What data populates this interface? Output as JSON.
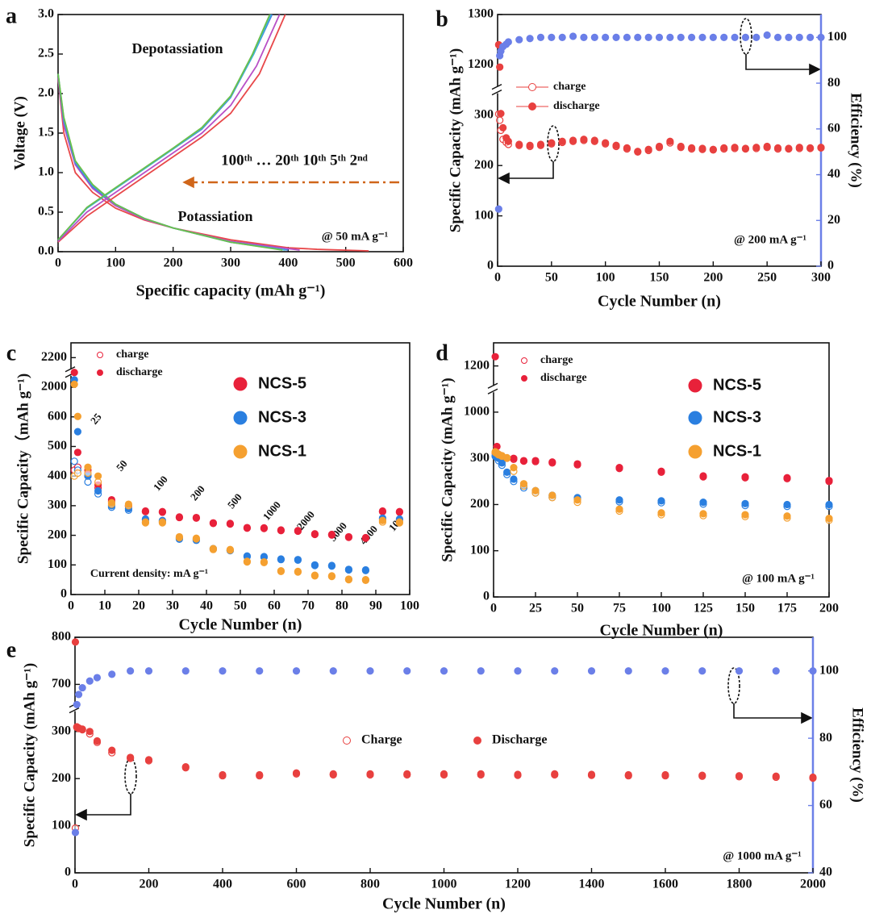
{
  "chart_data": [
    {
      "type": "line",
      "panel_label": "a",
      "xlabel": "Specific capacity (mAh g⁻¹)",
      "ylabel": "Voltage (V)",
      "xlim": [
        0,
        600
      ],
      "ylim": [
        0,
        3
      ],
      "xticks": [
        0,
        100,
        200,
        300,
        400,
        500,
        600
      ],
      "yticks": [
        {
          "value": 0,
          "label": "0.0"
        },
        0.5,
        {
          "value": 1,
          "label": "1.0"
        },
        1.5,
        {
          "value": 2,
          "label": "2.0"
        },
        2.5,
        {
          "value": 3,
          "label": "3.0"
        }
      ],
      "annotations": [
        "Depotassiation",
        "Potassiation",
        "100ᵗʰ … 20ᵗʰ 10ᵗʰ 5ᵗʰ 2ⁿᵈ",
        "@ 50 mA g⁻¹"
      ],
      "series": [
        {
          "color": "#e8484a",
          "x": [
            0,
            10,
            30,
            60,
            100,
            150,
            200,
            300,
            400,
            450,
            540
          ],
          "values": [
            2.2,
            1.5,
            1.0,
            0.75,
            0.55,
            0.4,
            0.3,
            0.15,
            0.05,
            0.03,
            0.01
          ]
        },
        {
          "color": "#b84fc6",
          "x": [
            0,
            10,
            30,
            60,
            100,
            150,
            200,
            300,
            420
          ],
          "values": [
            2.2,
            1.6,
            1.1,
            0.8,
            0.58,
            0.41,
            0.3,
            0.13,
            0.02
          ]
        },
        {
          "color": "#4a7fe0",
          "x": [
            0,
            10,
            30,
            60,
            100,
            150,
            200,
            300,
            400
          ],
          "values": [
            2.25,
            1.65,
            1.12,
            0.82,
            0.6,
            0.42,
            0.3,
            0.12,
            0.02
          ]
        },
        {
          "color": "#3cb4d8",
          "x": [
            0,
            10,
            30,
            60,
            100,
            150,
            200,
            300,
            395
          ],
          "values": [
            2.25,
            1.68,
            1.14,
            0.84,
            0.6,
            0.42,
            0.3,
            0.12,
            0.02
          ]
        },
        {
          "color": "#6abf4b",
          "x": [
            0,
            10,
            30,
            60,
            100,
            150,
            200,
            300,
            390
          ],
          "values": [
            2.25,
            1.7,
            1.15,
            0.85,
            0.6,
            0.42,
            0.3,
            0.12,
            0.02
          ]
        },
        {
          "color": "#e8484a",
          "x": [
            0,
            50,
            100,
            150,
            200,
            250,
            300,
            350,
            395
          ],
          "values": [
            0.12,
            0.45,
            0.7,
            0.95,
            1.2,
            1.45,
            1.75,
            2.25,
            3.0
          ]
        },
        {
          "color": "#b84fc6",
          "x": [
            0,
            50,
            100,
            150,
            200,
            250,
            300,
            345,
            385
          ],
          "values": [
            0.13,
            0.5,
            0.75,
            1.0,
            1.25,
            1.5,
            1.85,
            2.35,
            3.0
          ]
        },
        {
          "color": "#4a7fe0",
          "x": [
            0,
            50,
            100,
            150,
            200,
            250,
            300,
            340,
            372
          ],
          "values": [
            0.15,
            0.55,
            0.8,
            1.05,
            1.3,
            1.55,
            1.95,
            2.5,
            3.0
          ]
        },
        {
          "color": "#3cb4d8",
          "x": [
            0,
            50,
            100,
            150,
            200,
            250,
            300,
            340,
            370
          ],
          "values": [
            0.15,
            0.55,
            0.8,
            1.05,
            1.3,
            1.56,
            1.96,
            2.5,
            3.0
          ]
        },
        {
          "color": "#6abf4b",
          "x": [
            0,
            50,
            100,
            150,
            200,
            250,
            300,
            338,
            368
          ],
          "values": [
            0.15,
            0.56,
            0.81,
            1.06,
            1.31,
            1.57,
            1.97,
            2.5,
            3.0
          ]
        }
      ]
    },
    {
      "type": "scatter",
      "panel_label": "b",
      "xlabel": "Cycle Number (n)",
      "ylabel": "Specific Capacity (mAh g⁻¹)",
      "y2label": "Efficiency (%)",
      "xlim": [
        0,
        300
      ],
      "ylim": [
        0,
        1300
      ],
      "y2lim": [
        0,
        110
      ],
      "ybreak": true,
      "y2color": "#6b7fe8",
      "xticks": [
        0,
        50,
        100,
        150,
        200,
        250,
        300
      ],
      "yticks": [
        0,
        100,
        200,
        300,
        1200,
        1300
      ],
      "y2ticks": [
        0,
        20,
        40,
        60,
        80,
        100
      ],
      "annotations": [
        "@ 200 mA g⁻¹"
      ],
      "x": [
        1,
        2,
        3,
        5,
        8,
        10,
        20,
        30,
        40,
        50,
        60,
        70,
        80,
        90,
        100,
        110,
        120,
        130,
        140,
        150,
        160,
        170,
        180,
        190,
        200,
        210,
        220,
        230,
        240,
        250,
        260,
        270,
        280,
        290,
        300
      ],
      "series": [
        {
          "name": "charge",
          "color": "#e8403f",
          "marker": "open",
          "values": [
            320,
            290,
            270,
            252,
            246,
            242,
            240,
            238,
            240,
            243,
            246,
            248,
            250,
            248,
            243,
            238,
            233,
            227,
            230,
            236,
            245,
            236,
            233,
            232,
            231,
            233,
            234,
            233,
            234,
            236,
            233,
            233,
            234,
            234,
            235
          ]
        },
        {
          "name": "discharge",
          "color": "#e8403f",
          "marker": "filled",
          "values": [
            1240,
            1160,
            330,
            275,
            255,
            248,
            242,
            240,
            242,
            245,
            248,
            250,
            252,
            250,
            245,
            240,
            235,
            228,
            232,
            238,
            248,
            238,
            235,
            234,
            232,
            235,
            236,
            234,
            236,
            238,
            235,
            234,
            236,
            235,
            236
          ]
        },
        {
          "color": "#6b7fe8",
          "marker": "filled",
          "axis": "y2",
          "values": [
            25,
            92,
            94,
            96,
            97,
            98,
            99,
            99.5,
            100,
            100,
            100,
            100.5,
            100,
            100,
            100,
            100,
            100,
            100,
            100,
            100,
            100,
            100,
            100,
            100,
            100,
            100,
            100,
            100,
            100,
            101,
            100,
            100,
            100,
            100,
            100
          ]
        }
      ]
    },
    {
      "type": "scatter",
      "panel_label": "c",
      "xlabel": "Cycle Number (n)",
      "ylabel": "Specific Capacity（mAh g⁻¹)",
      "xlim": [
        0,
        100
      ],
      "ylim": [
        0,
        2300
      ],
      "ybreak": true,
      "xticks": [
        0,
        10,
        20,
        30,
        40,
        50,
        60,
        70,
        80,
        90,
        100
      ],
      "yticks": [
        0,
        100,
        200,
        300,
        400,
        500,
        600,
        2000,
        2200
      ],
      "annotations": [
        "Current density:  mA g⁻¹",
        "25",
        "50",
        "100",
        "200",
        "500",
        "1000",
        "2000",
        "3000",
        "4000",
        "100"
      ],
      "marker_legend": [
        "charge",
        "discharge"
      ],
      "x": [
        1,
        2,
        5,
        8,
        12,
        17,
        22,
        27,
        32,
        37,
        42,
        47,
        52,
        57,
        62,
        67,
        72,
        77,
        82,
        87,
        92,
        97
      ],
      "series": [
        {
          "name": "NCS-5",
          "color": "#e8213a",
          "values": [
            2100,
            480,
            420,
            370,
            320,
            300,
            282,
            280,
            262,
            260,
            242,
            240,
            226,
            225,
            218,
            216,
            205,
            203,
            195,
            192,
            282,
            280
          ],
          "charge": [
            420,
            430,
            400,
            360,
            315,
            298,
            280,
            278,
            260,
            258,
            240,
            238,
            224,
            223,
            216,
            214,
            203,
            201,
            193,
            190,
            280,
            278
          ]
        },
        {
          "name": "NCS-3",
          "color": "#2a7fe0",
          "values": [
            2050,
            550,
            400,
            350,
            300,
            290,
            255,
            250,
            190,
            185,
            155,
            150,
            130,
            128,
            120,
            118,
            100,
            98,
            85,
            83,
            258,
            255
          ],
          "charge": [
            450,
            420,
            380,
            340,
            295,
            285,
            252,
            248,
            187,
            183,
            153,
            148,
            128,
            126,
            118,
            116,
            98,
            96,
            83,
            81,
            255,
            252
          ]
        },
        {
          "name": "NCS-1",
          "color": "#f5a030",
          "values": [
            2020,
            620,
            430,
            400,
            310,
            305,
            245,
            245,
            195,
            190,
            155,
            152,
            112,
            110,
            80,
            78,
            65,
            63,
            52,
            50,
            250,
            245
          ],
          "charge": [
            400,
            410,
            410,
            380,
            305,
            300,
            242,
            242,
            192,
            188,
            152,
            150,
            110,
            108,
            78,
            76,
            63,
            61,
            50,
            48,
            245,
            242
          ]
        }
      ]
    },
    {
      "type": "scatter",
      "panel_label": "d",
      "xlabel": "Cycle Number (n)",
      "ylabel": "Specific Capacity (mAh g⁻¹)",
      "xlim": [
        0,
        200
      ],
      "ylim": [
        0,
        1300
      ],
      "ybreak": true,
      "xticks": [
        0,
        25,
        50,
        75,
        100,
        125,
        150,
        175,
        200
      ],
      "yticks": [
        0,
        100,
        200,
        300,
        1000,
        1200
      ],
      "annotations": [
        "@ 100 mA g⁻¹"
      ],
      "marker_legend": [
        "charge",
        "discharge"
      ],
      "x": [
        1,
        2,
        3,
        5,
        8,
        12,
        18,
        25,
        35,
        50,
        75,
        100,
        125,
        150,
        175,
        200
      ],
      "series": [
        {
          "name": "NCS-5",
          "color": "#e8213a",
          "values": [
            1240,
            480,
            360,
            320,
            305,
            300,
            295,
            295,
            292,
            288,
            280,
            272,
            262,
            260,
            258,
            252
          ],
          "charge": [
            380,
            340,
            330,
            315,
            302,
            298,
            294,
            293,
            290,
            286,
            278,
            270,
            260,
            258,
            256,
            250
          ]
        },
        {
          "name": "NCS-3",
          "color": "#2a7fe0",
          "values": [
            340,
            320,
            300,
            290,
            270,
            255,
            240,
            230,
            220,
            215,
            210,
            208,
            205,
            202,
            200,
            200
          ],
          "charge": [
            330,
            312,
            295,
            285,
            265,
            250,
            236,
            226,
            216,
            211,
            206,
            204,
            201,
            198,
            196,
            196
          ]
        },
        {
          "name": "NCS-1",
          "color": "#f5a030",
          "values": [
            400,
            380,
            360,
            340,
            310,
            280,
            245,
            230,
            220,
            210,
            190,
            182,
            180,
            178,
            175,
            170
          ],
          "charge": [
            390,
            372,
            352,
            332,
            302,
            272,
            240,
            225,
            215,
            205,
            186,
            178,
            176,
            174,
            171,
            166
          ]
        }
      ]
    },
    {
      "type": "scatter",
      "panel_label": "e",
      "xlabel": "Cycle Number (n)",
      "ylabel": "Specific Capacity (mAh g⁻¹)",
      "y2label": "Efficiency (%)",
      "xlim": [
        0,
        2000
      ],
      "ylim": [
        0,
        800
      ],
      "y2lim": [
        40,
        110
      ],
      "ybreak": true,
      "y2color": "#6b7fe8",
      "xticks": [
        0,
        200,
        400,
        600,
        800,
        1000,
        1200,
        1400,
        1600,
        1800,
        2000
      ],
      "yticks": [
        0,
        100,
        200,
        300,
        700,
        800
      ],
      "y2ticks": [
        40,
        60,
        80,
        100
      ],
      "annotations": [
        "@ 1000 mA g⁻¹"
      ],
      "x": [
        1,
        5,
        10,
        20,
        40,
        60,
        100,
        150,
        200,
        300,
        400,
        500,
        600,
        700,
        800,
        900,
        1000,
        1100,
        1200,
        1300,
        1400,
        1500,
        1600,
        1700,
        1800,
        1900,
        2000
      ],
      "series": [
        {
          "name": "Charge",
          "color": "#e8403f",
          "marker": "open",
          "values": [
            95,
            335,
            325,
            315,
            295,
            277,
            255,
            243,
            238,
            223,
            206,
            206,
            210,
            208,
            208,
            208,
            208,
            208,
            207,
            208,
            207,
            206,
            206,
            205,
            204,
            203,
            201
          ]
        },
        {
          "name": "Discharge",
          "color": "#e8403f",
          "marker": "filled",
          "values": [
            790,
            340,
            330,
            320,
            300,
            280,
            260,
            245,
            240,
            225,
            208,
            208,
            212,
            210,
            210,
            210,
            210,
            210,
            209,
            210,
            209,
            208,
            208,
            207,
            206,
            205,
            203
          ]
        },
        {
          "color": "#6b7fe8",
          "marker": "filled",
          "axis": "y2",
          "values": [
            52,
            90,
            93,
            95,
            97,
            98,
            99,
            100,
            100,
            100,
            100,
            100,
            100,
            100,
            100,
            100,
            100,
            100,
            100,
            100,
            100,
            100,
            100,
            100,
            100,
            100,
            100
          ]
        }
      ]
    }
  ]
}
